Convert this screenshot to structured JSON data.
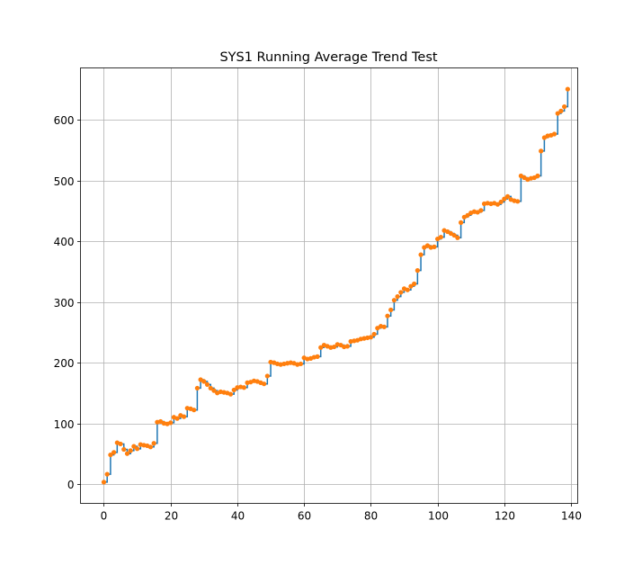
{
  "chart_data": {
    "type": "line",
    "title": "SYS1 Running Average Trend Test",
    "xlabel": "",
    "ylabel": "",
    "xlim": [
      -7,
      142
    ],
    "ylim": [
      -32,
      686
    ],
    "x_ticks": [
      0,
      20,
      40,
      60,
      80,
      100,
      120,
      140
    ],
    "y_ticks": [
      0,
      100,
      200,
      300,
      400,
      500,
      600
    ],
    "x_tick_labels": [
      "0",
      "20",
      "40",
      "60",
      "80",
      "100",
      "120",
      "140"
    ],
    "y_tick_labels": [
      "0",
      "100",
      "200",
      "300",
      "400",
      "500",
      "600"
    ],
    "grid": true,
    "step": "post",
    "series": [
      {
        "line_color": "#1f77b4",
        "marker_color": "#ff7f0e",
        "values": [
          3,
          16,
          48,
          52,
          68,
          66,
          57,
          50,
          55,
          62,
          58,
          65,
          64,
          63,
          61,
          67,
          102,
          103,
          100,
          99,
          101,
          110,
          108,
          113,
          111,
          125,
          124,
          122,
          158,
          172,
          169,
          164,
          158,
          154,
          150,
          152,
          151,
          150,
          148,
          155,
          159,
          160,
          159,
          167,
          168,
          170,
          169,
          167,
          165,
          178,
          201,
          200,
          198,
          197,
          198,
          199,
          200,
          199,
          197,
          198,
          208,
          206,
          207,
          209,
          210,
          225,
          229,
          227,
          225,
          226,
          230,
          229,
          226,
          227,
          235,
          236,
          237,
          239,
          240,
          241,
          242,
          247,
          257,
          260,
          259,
          277,
          287,
          303,
          309,
          316,
          322,
          320,
          326,
          330,
          352,
          378,
          390,
          393,
          390,
          391,
          404,
          407,
          418,
          416,
          413,
          410,
          406,
          431,
          440,
          443,
          447,
          449,
          448,
          451,
          462,
          463,
          462,
          463,
          461,
          465,
          470,
          474,
          469,
          467,
          466,
          508,
          505,
          502,
          504,
          505,
          508,
          549,
          571,
          574,
          575,
          577,
          611,
          615,
          622,
          651
        ]
      }
    ]
  }
}
